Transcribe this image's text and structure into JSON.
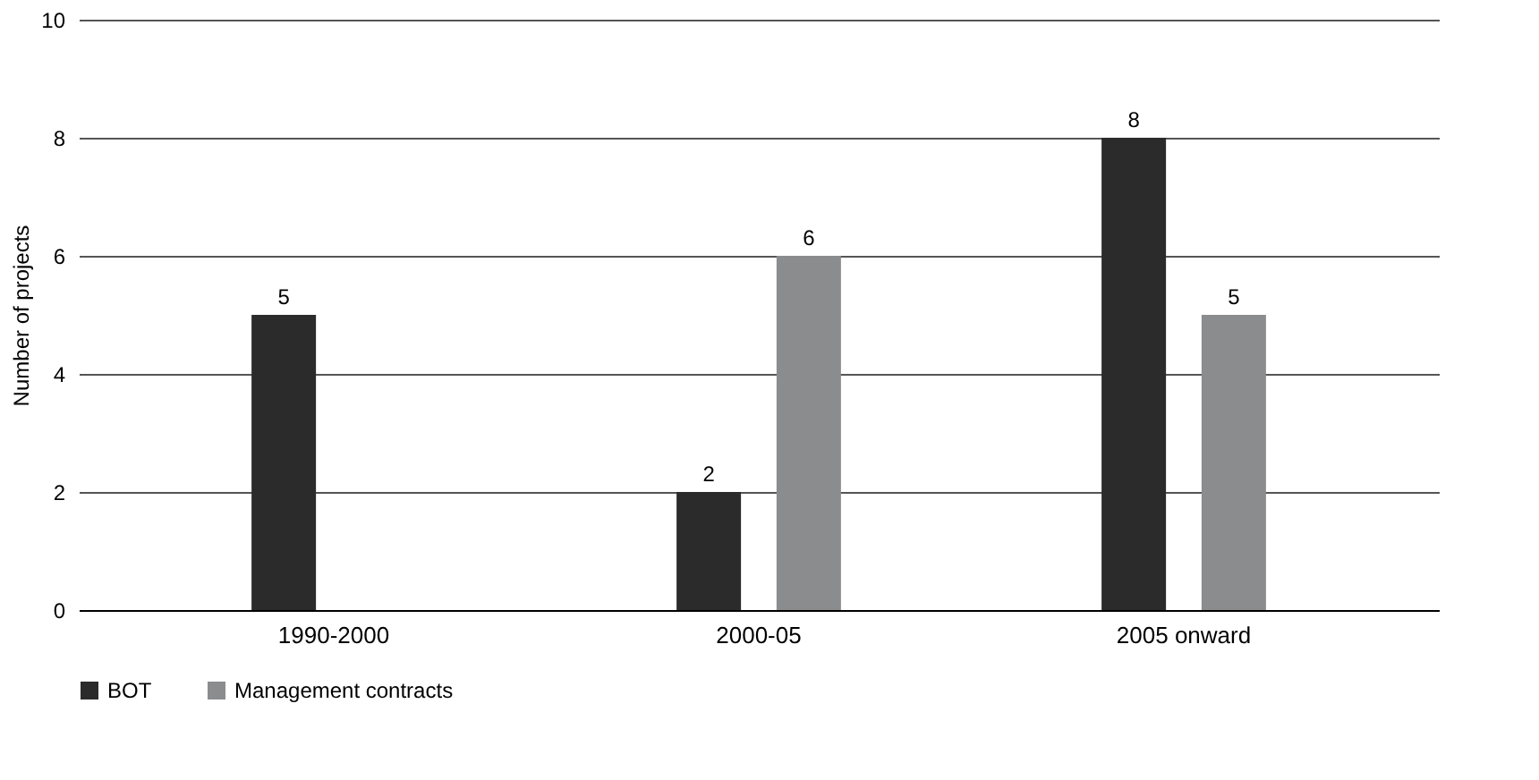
{
  "chart_data": {
    "type": "bar",
    "ylabel": "Number of projects",
    "categories": [
      "1990-2000",
      "2000-05",
      "2005 onward"
    ],
    "series": [
      {
        "name": "BOT",
        "color": "#2b2b2b",
        "values": [
          5,
          2,
          8
        ]
      },
      {
        "name": "Management contracts",
        "color": "#8a8c8e",
        "values": [
          null,
          6,
          5
        ]
      }
    ],
    "ylim": [
      0,
      10
    ],
    "yticks": [
      0,
      2,
      4,
      6,
      8,
      10
    ],
    "grid": "y",
    "legend": "bottom",
    "data_labels": true
  }
}
